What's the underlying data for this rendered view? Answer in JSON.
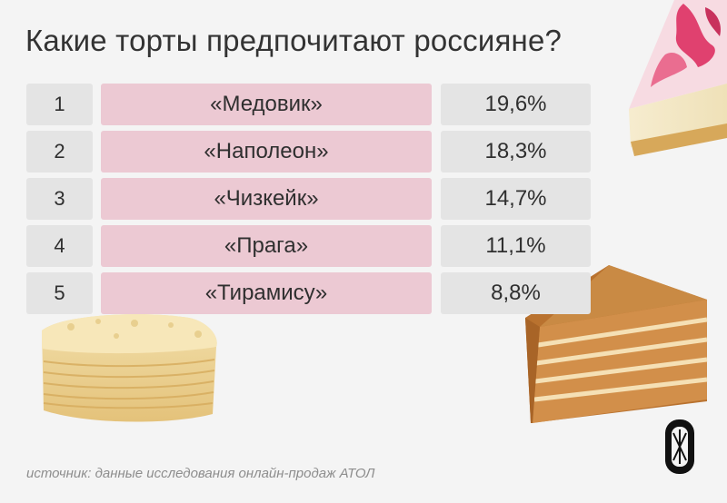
{
  "chart_data": {
    "type": "table",
    "title": "Какие торты предпочитают россияне?",
    "rows": [
      {
        "rank": "1",
        "name": "«Медовик»",
        "share": "19,6%",
        "value": 19.6
      },
      {
        "rank": "2",
        "name": "«Наполеон»",
        "share": "18,3%",
        "value": 18.3
      },
      {
        "rank": "3",
        "name": "«Чизкейк»",
        "share": "14,7%",
        "value": 14.7
      },
      {
        "rank": "4",
        "name": "«Прага»",
        "share": "11,1%",
        "value": 11.1
      },
      {
        "rank": "5",
        "name": "«Тирамису»",
        "share": "8,8%",
        "value": 8.8
      }
    ],
    "source": "источник: данные исследования онлайн-продаж АТОЛ"
  },
  "colors": {
    "background": "#f4f4f4",
    "name_cell": "#ecc9d3",
    "rank_cell": "#e4e4e4",
    "share_cell": "#e4e4e4",
    "text": "#2f2f2f"
  },
  "icons": {
    "logo": "publisher-logo-icon",
    "cake_images": [
      "cheesecake-slice-image",
      "napoleon-cake-image",
      "honey-cake-image"
    ]
  }
}
